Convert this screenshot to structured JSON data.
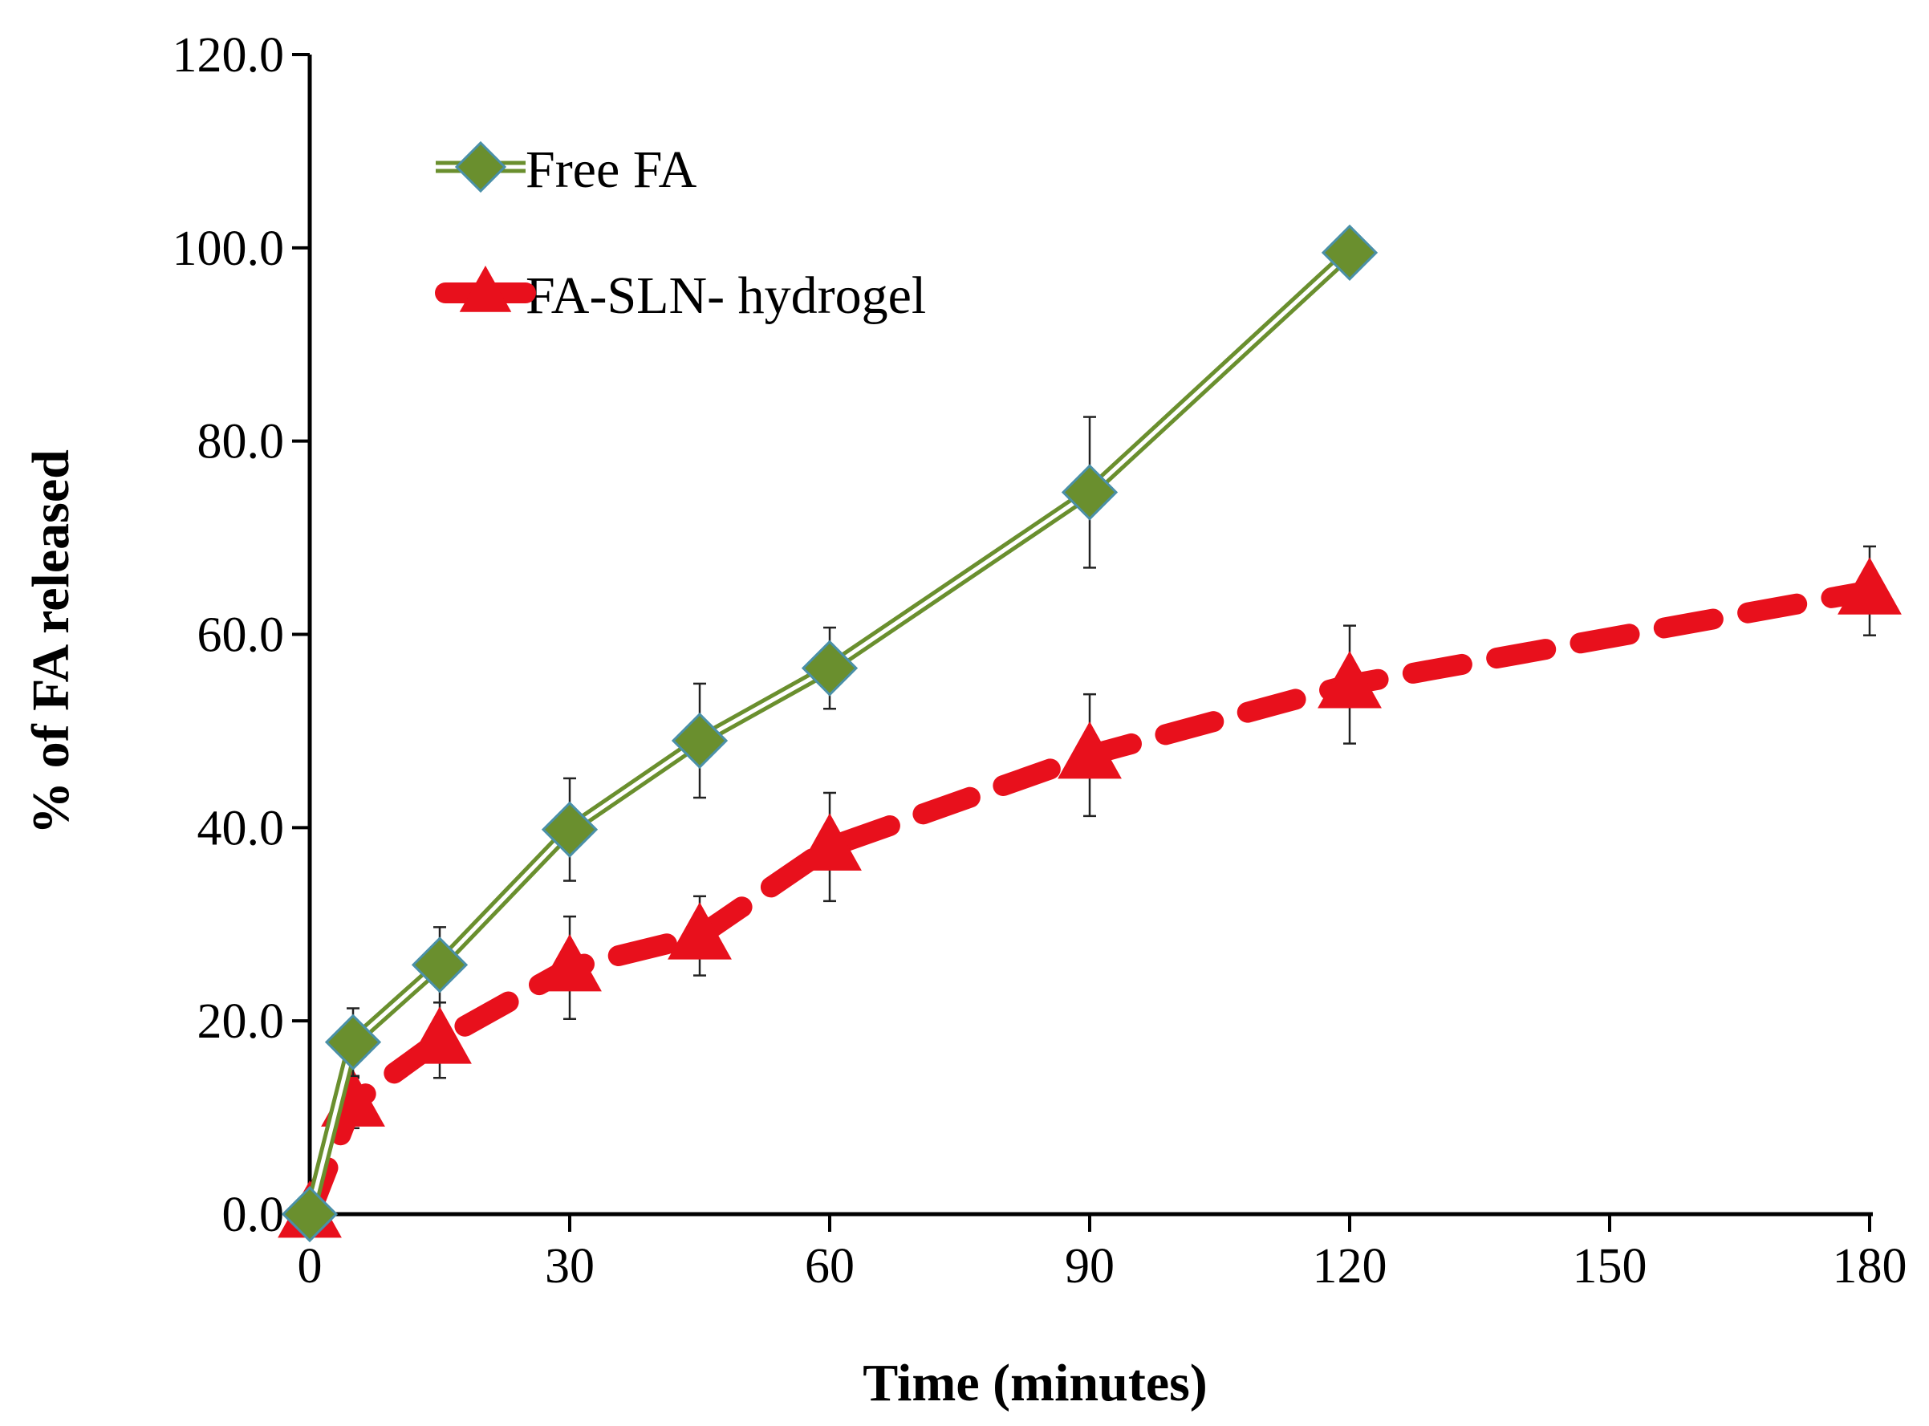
{
  "chart_data": {
    "type": "line",
    "title": "",
    "xlabel": "Time (minutes)",
    "ylabel": "% of FA released",
    "xlim": [
      0,
      180
    ],
    "ylim": [
      0,
      120
    ],
    "xticks": [
      0,
      30,
      60,
      90,
      120,
      150,
      180
    ],
    "xtick_labels": [
      "0",
      "30",
      "60",
      "90",
      "120",
      "150",
      "180"
    ],
    "yticks": [
      0,
      20,
      40,
      60,
      80,
      100,
      120
    ],
    "ytick_labels": [
      "0.0",
      "20.0",
      "40.0",
      "60.0",
      "80.0",
      "100.0",
      "120.0"
    ],
    "grid": false,
    "legend_position": "top-left",
    "series": [
      {
        "name": "Free FA",
        "color": "#6a8f2e",
        "marker": "diamond",
        "line_style": "double",
        "x": [
          0,
          5,
          15,
          30,
          45,
          60,
          90,
          120
        ],
        "y": [
          0.0,
          17.8,
          25.8,
          39.8,
          49.0,
          56.5,
          74.7,
          99.5
        ],
        "error": [
          0,
          3.5,
          3.9,
          5.3,
          5.9,
          4.2,
          7.8,
          0
        ]
      },
      {
        "name": "FA-SLN- hydrogel",
        "color": "#e8101c",
        "marker": "triangle",
        "line_style": "dashed",
        "x": [
          0,
          5,
          15,
          30,
          45,
          60,
          90,
          120,
          180
        ],
        "y": [
          0.0,
          11.5,
          18.0,
          25.5,
          28.8,
          38.0,
          47.5,
          54.8,
          64.5
        ],
        "error": [
          0,
          2.6,
          3.9,
          5.3,
          4.1,
          5.6,
          6.3,
          6.1,
          4.6
        ]
      }
    ]
  }
}
